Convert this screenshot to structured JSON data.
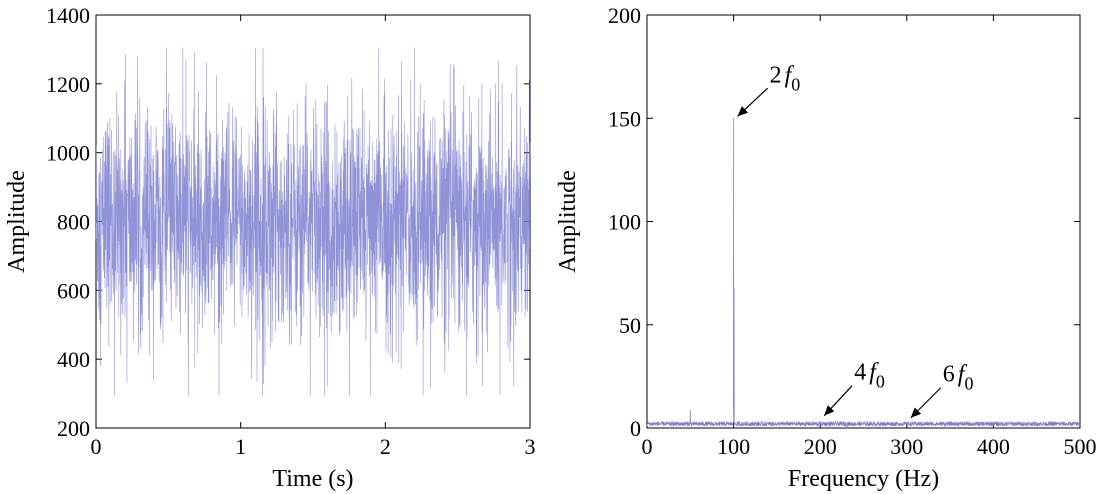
{
  "chart_data": [
    {
      "type": "line",
      "title": "",
      "xlabel": "Time (s)",
      "ylabel": "Amplitude",
      "xlim": [
        0,
        3
      ],
      "ylim": [
        200,
        1400
      ],
      "xticks": [
        "0",
        "1",
        "2",
        "3"
      ],
      "yticks": [
        "200",
        "400",
        "600",
        "800",
        "1000",
        "1200",
        "1400"
      ],
      "grid": false,
      "color": "#7b7fd0",
      "signal": {
        "description_free": true,
        "x_start": 0,
        "x_end": 3,
        "points": 2400,
        "center": 800,
        "envelope_typical": [
          600,
          1080
        ],
        "min_observed": 295,
        "max_observed": 1305
      },
      "series": [
        {
          "x": [
            0,
            0.25,
            0.5,
            0.75,
            1.0,
            1.25,
            1.5,
            1.75,
            2.0,
            2.25,
            2.5,
            2.75,
            3.0
          ],
          "values": [
            820,
            760,
            900,
            710,
            880,
            790,
            850,
            700,
            920,
            780,
            830,
            760,
            810
          ]
        }
      ]
    },
    {
      "type": "line",
      "title": "",
      "xlabel": "Frequency (Hz)",
      "ylabel": "Amplitude",
      "xlim": [
        0,
        500
      ],
      "ylim": [
        0,
        200
      ],
      "xticks": [
        "0",
        "100",
        "200",
        "300",
        "400",
        "500"
      ],
      "yticks": [
        "0",
        "50",
        "100",
        "150",
        "200"
      ],
      "grid": false,
      "color": "#7b7fd0",
      "noise_floor": 2,
      "peaks": [
        {
          "x": 50,
          "y": 9
        },
        {
          "x": 100,
          "y": 150
        },
        {
          "x": 100.5,
          "y": 68
        },
        {
          "x": 200,
          "y": 3
        },
        {
          "x": 300,
          "y": 2.5
        }
      ],
      "annotations": [
        {
          "coef": "2",
          "sym": "f",
          "sub": "0",
          "x": 100,
          "y": 150
        },
        {
          "coef": "4",
          "sym": "f",
          "sub": "0",
          "x": 200,
          "y": 5
        },
        {
          "coef": "6",
          "sym": "f",
          "sub": "0",
          "x": 300,
          "y": 4
        }
      ]
    }
  ]
}
